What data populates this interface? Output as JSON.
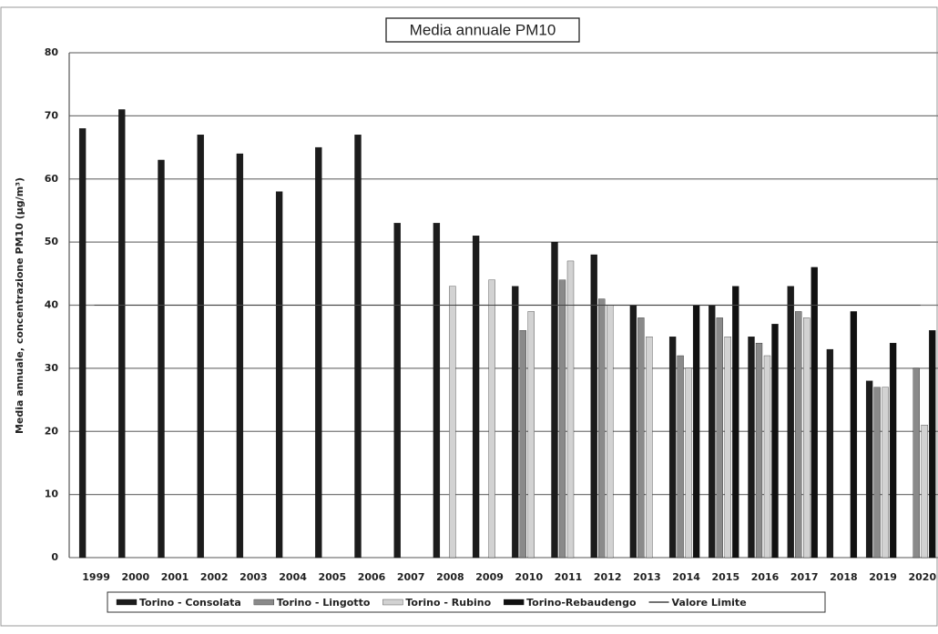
{
  "chart_data": {
    "type": "bar",
    "title": "Media annuale PM10",
    "y_label": "Media annuale, concentrazione PM10 (µg/m³)",
    "categories": [
      "1999",
      "2000",
      "2001",
      "2002",
      "2003",
      "2004",
      "2005",
      "2006",
      "2007",
      "2008",
      "2009",
      "2010",
      "2011",
      "2012",
      "2013",
      "2014",
      "2015",
      "2016",
      "2017",
      "2018",
      "2019",
      "2020"
    ],
    "series": [
      {
        "name": "Torino - Consolata",
        "color": "#1c1c1c",
        "values": [
          68,
          71,
          63,
          67,
          64,
          58,
          65,
          67,
          53,
          53,
          51,
          43,
          50,
          48,
          40,
          35,
          40,
          35,
          43,
          33,
          28,
          null
        ]
      },
      {
        "name": "Torino - Lingotto",
        "color": "#8a8a8a",
        "values": [
          null,
          null,
          null,
          null,
          null,
          null,
          null,
          null,
          null,
          null,
          null,
          36,
          44,
          41,
          38,
          32,
          38,
          34,
          39,
          null,
          27,
          30
        ]
      },
      {
        "name": "Torino - Rubino",
        "color": "#d2d2d2",
        "values": [
          null,
          null,
          null,
          null,
          null,
          null,
          null,
          null,
          null,
          43,
          44,
          39,
          47,
          40,
          35,
          30,
          35,
          32,
          38,
          null,
          27,
          21
        ]
      },
      {
        "name": "Torino-Rebaudengo",
        "color": "#111111",
        "values": [
          null,
          null,
          null,
          null,
          null,
          null,
          null,
          null,
          null,
          null,
          null,
          null,
          null,
          null,
          null,
          40,
          43,
          37,
          46,
          39,
          34,
          36
        ]
      },
      {
        "name": "Valore Limite",
        "type": "line",
        "color": "#444444",
        "values": [
          40,
          40,
          40,
          40,
          40,
          40,
          40,
          40,
          40,
          40,
          40,
          40,
          40,
          40,
          40,
          40,
          40,
          40,
          40,
          40,
          40,
          40
        ]
      }
    ],
    "ylim": [
      0,
      80
    ],
    "yticks": [
      0,
      10,
      20,
      30,
      40,
      50,
      60,
      70,
      80
    ],
    "grid": true,
    "legend": "bottom"
  }
}
